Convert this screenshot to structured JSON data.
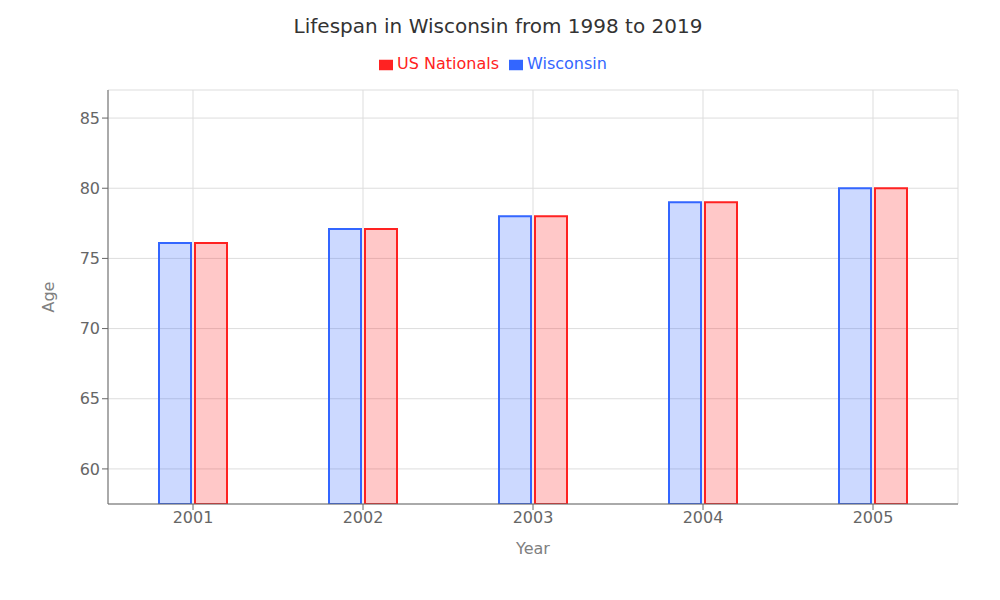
{
  "chart_data": {
    "type": "bar",
    "title": "Lifespan in Wisconsin from 1998 to 2019",
    "x_label": "Year",
    "y_label": "Age",
    "categories": [
      "2001",
      "2002",
      "2003",
      "2004",
      "2005"
    ],
    "series": [
      {
        "name": "Wisconsin",
        "color": "#3366ff",
        "values": [
          76.1,
          77.1,
          78.0,
          79.0,
          80.0
        ]
      },
      {
        "name": "US Nationals",
        "color": "#ff2222",
        "values": [
          76.1,
          77.1,
          78.0,
          79.0,
          80.0
        ]
      }
    ],
    "ylim": [
      57.5,
      87
    ],
    "yticks": [
      60,
      65,
      70,
      75,
      80,
      85
    ],
    "grid": true,
    "legend": "top"
  }
}
